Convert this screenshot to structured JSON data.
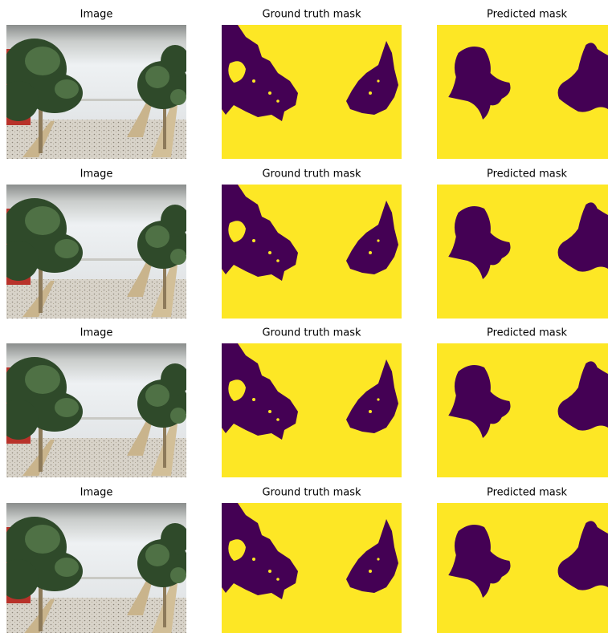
{
  "rows": [
    [
      "Image",
      "Ground truth mask",
      "Predicted mask"
    ],
    [
      "Image",
      "Ground truth mask",
      "Predicted mask"
    ],
    [
      "Image",
      "Ground truth mask",
      "Predicted mask"
    ],
    [
      "Image",
      "Ground truth mask",
      "Predicted mask"
    ]
  ]
}
